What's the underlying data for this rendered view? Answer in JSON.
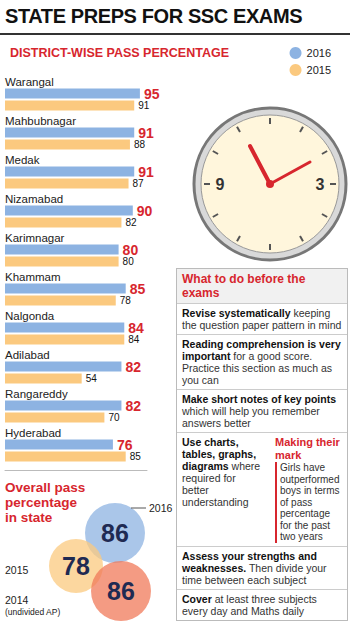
{
  "header": {
    "title": "STATE PREPS FOR SSC EXAMS"
  },
  "chart_data": {
    "type": "bar",
    "title": "DISTRICT-WISE PASS PERCENTAGE",
    "orientation": "horizontal",
    "categories": [
      "Warangal",
      "Mahbubnagar",
      "Medak",
      "Nizamabad",
      "Karimnagar",
      "Khammam",
      "Nalgonda",
      "Adilabad",
      "Rangareddy",
      "Hyderabad"
    ],
    "series": [
      {
        "name": "2016",
        "color": "#8db3e2",
        "values": [
          95,
          91,
          91,
          90,
          80,
          85,
          84,
          82,
          82,
          76
        ]
      },
      {
        "name": "2015",
        "color": "#fbc97f",
        "values": [
          91,
          88,
          87,
          82,
          80,
          78,
          84,
          54,
          70,
          85
        ]
      }
    ],
    "xlim": [
      0,
      100
    ],
    "tick_labels": "y",
    "data_labels": true,
    "legend": "top-right",
    "grid": false
  },
  "overall": {
    "title": "Overall pass percentage in state",
    "circles": [
      {
        "year": "2016",
        "value": 86,
        "color": "#8db3e2"
      },
      {
        "year": "2015",
        "value": 78,
        "color": "#fbc97f"
      },
      {
        "year": "2014",
        "value": 86,
        "color": "#f07a5a",
        "note": "(undivided AP)"
      }
    ]
  },
  "clock": {
    "numerals": [
      9,
      3
    ]
  },
  "tips": {
    "title": "What to do before the exams",
    "items": [
      {
        "bold": "Revise systematically",
        "text": "keeping the question paper pattern in mind"
      },
      {
        "bold": "Reading comprehension is very important",
        "text": "for a good score. Practice this section as much as you can"
      },
      {
        "bold": "Make short notes of key points",
        "text": "which will help you remember answers better"
      },
      {
        "bold": "Use charts, tables, graphs, diagrams",
        "text": "where required for better understanding"
      },
      {
        "bold": "Assess your strengths and weaknesses.",
        "text": "Then divide your time between each subject"
      },
      {
        "bold": "Cover",
        "text": "at least three subjects every day and Maths daily"
      }
    ]
  },
  "sidebar": {
    "title": "Making their mark",
    "text": "Girls have outperformed boys in terms of pass percentage for the past two years"
  }
}
